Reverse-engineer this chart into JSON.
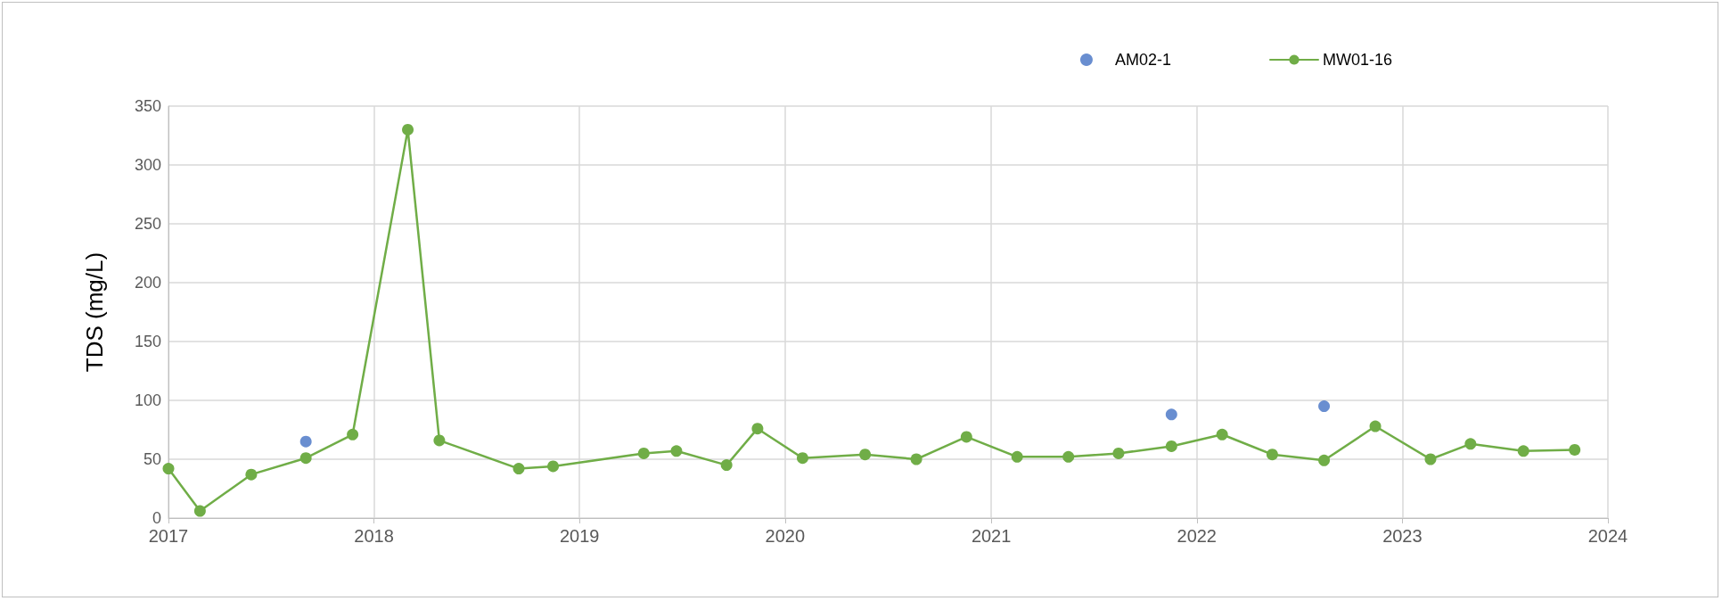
{
  "chart_data": {
    "type": "line",
    "ylabel": "TDS (mg/L)",
    "xlim": [
      "2017",
      "2024"
    ],
    "xticks": [
      "2017",
      "2018",
      "2019",
      "2020",
      "2021",
      "2022",
      "2023",
      "2024"
    ],
    "ylim": [
      0,
      350
    ],
    "yticks": [
      0,
      50,
      100,
      150,
      200,
      250,
      300,
      350
    ],
    "grid": true,
    "legend": "top right",
    "marker": "circle",
    "line_style": "solid",
    "series": [
      {
        "name": "AM02-1",
        "type": "scatter",
        "color": "#4472c4",
        "x": [
          "2017-09-02",
          "2021-11-17",
          "2022-08-15"
        ],
        "values": [
          65,
          88,
          95
        ]
      },
      {
        "name": "MW01-16",
        "color": "#70ad47",
        "x": [
          "2017-01-01",
          "2017-02-26",
          "2017-05-28",
          "2017-09-02",
          "2017-11-24",
          "2018-03-02",
          "2018-04-27",
          "2018-09-15",
          "2018-11-15",
          "2019-04-25",
          "2019-06-22",
          "2019-09-19",
          "2019-11-13",
          "2020-02-01",
          "2020-05-22",
          "2020-08-21",
          "2020-11-18",
          "2021-02-16",
          "2021-05-18",
          "2021-08-15",
          "2021-11-17",
          "2022-02-15",
          "2022-05-15",
          "2022-08-15",
          "2022-11-14",
          "2023-02-20",
          "2023-05-02",
          "2023-08-04",
          "2023-11-03"
        ],
        "values": [
          42,
          6,
          37,
          51,
          71,
          330,
          66,
          42,
          44,
          55,
          57,
          45,
          76,
          51,
          54,
          50,
          69,
          52,
          52,
          55,
          61,
          71,
          54,
          49,
          78,
          50,
          63,
          57,
          58
        ]
      }
    ]
  }
}
